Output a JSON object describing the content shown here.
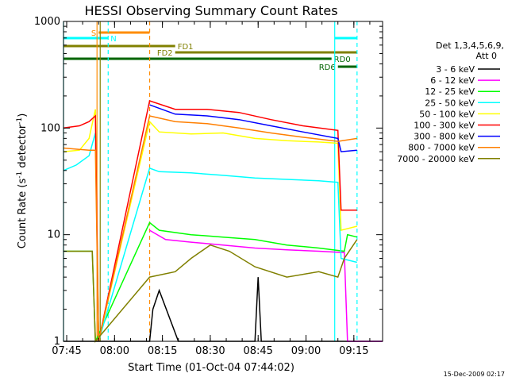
{
  "chart_data": {
    "type": "line",
    "title": "HESSI Observing Summary Count Rates",
    "xlabel": "Start Time (01-Oct-04 07:44:02)",
    "ylabel_main": "Count Rate (s",
    "ylabel_sup1": "-1",
    "ylabel_mid": " detector",
    "ylabel_sup2": "-1",
    "ylabel_end": ")",
    "x_range_min": [
      0,
      100
    ],
    "y_log_range": [
      1,
      1000
    ],
    "x_ticks": [
      {
        "label": "07:45",
        "t": 1
      },
      {
        "label": "08:00",
        "t": 16
      },
      {
        "label": "08:15",
        "t": 31
      },
      {
        "label": "08:30",
        "t": 46
      },
      {
        "label": "08:45",
        "t": 61
      },
      {
        "label": "09:00",
        "t": 76
      },
      {
        "label": "09:15",
        "t": 91
      }
    ],
    "y_ticks": [
      {
        "label": "1",
        "v": 1
      },
      {
        "label": "10",
        "v": 10
      },
      {
        "label": "100",
        "v": 100
      },
      {
        "label": "1000",
        "v": 1000
      }
    ],
    "legend_header": [
      "Det 1,3,4,5,6,9,",
      "Att 0"
    ],
    "series": [
      {
        "name": "3 - 6 keV",
        "color": "#000000",
        "points": [
          [
            0,
            1
          ],
          [
            27,
            1
          ],
          [
            28,
            2
          ],
          [
            30,
            3
          ],
          [
            36,
            1
          ],
          [
            60,
            1
          ],
          [
            61,
            4
          ],
          [
            62,
            1
          ],
          [
            100,
            1
          ]
        ]
      },
      {
        "name": "6 - 12 keV",
        "color": "#ff00ff",
        "points": [
          [
            27,
            11
          ],
          [
            32,
            9
          ],
          [
            40,
            8.5
          ],
          [
            50,
            8
          ],
          [
            60,
            7.5
          ],
          [
            70,
            7.2
          ],
          [
            80,
            7
          ],
          [
            88,
            6.8
          ],
          [
            89,
            1
          ],
          [
            100,
            1
          ]
        ]
      },
      {
        "name": "12 - 25 keV",
        "color": "#00ff00",
        "points": [
          [
            0,
            7
          ],
          [
            8,
            7
          ],
          [
            9,
            7
          ],
          [
            10,
            1
          ],
          [
            27,
            13
          ],
          [
            30,
            11
          ],
          [
            40,
            10
          ],
          [
            50,
            9.5
          ],
          [
            60,
            9
          ],
          [
            70,
            8
          ],
          [
            80,
            7.5
          ],
          [
            88,
            7
          ],
          [
            89,
            10
          ],
          [
            92,
            9.5
          ]
        ]
      },
      {
        "name": "25 - 50 keV",
        "color": "#00ffff",
        "points": [
          [
            0,
            40
          ],
          [
            4,
            45
          ],
          [
            8,
            55
          ],
          [
            10,
            90
          ],
          [
            11,
            1
          ],
          [
            27,
            42
          ],
          [
            30,
            39
          ],
          [
            40,
            38
          ],
          [
            50,
            36
          ],
          [
            60,
            34
          ],
          [
            70,
            33
          ],
          [
            80,
            32
          ],
          [
            86,
            31
          ],
          [
            87,
            6
          ],
          [
            92,
            5.5
          ]
        ]
      },
      {
        "name": "50 - 100 keV",
        "color": "#ffff00",
        "points": [
          [
            0,
            60
          ],
          [
            5,
            62
          ],
          [
            8,
            80
          ],
          [
            10,
            150
          ],
          [
            11,
            1
          ],
          [
            27,
            115
          ],
          [
            30,
            92
          ],
          [
            40,
            88
          ],
          [
            50,
            90
          ],
          [
            60,
            80
          ],
          [
            70,
            76
          ],
          [
            80,
            74
          ],
          [
            86,
            72
          ],
          [
            87,
            11
          ],
          [
            92,
            12
          ]
        ]
      },
      {
        "name": "100 - 300 keV",
        "color": "#ff0000",
        "points": [
          [
            0,
            100
          ],
          [
            5,
            105
          ],
          [
            8,
            115
          ],
          [
            10,
            130
          ],
          [
            11,
            1
          ],
          [
            27,
            180
          ],
          [
            35,
            150
          ],
          [
            45,
            150
          ],
          [
            55,
            140
          ],
          [
            65,
            120
          ],
          [
            75,
            105
          ],
          [
            86,
            95
          ],
          [
            87,
            17
          ],
          [
            92,
            17
          ]
        ]
      },
      {
        "name": "300 - 800 keV",
        "color": "#0000ff",
        "points": [
          [
            27,
            165
          ],
          [
            35,
            135
          ],
          [
            45,
            130
          ],
          [
            55,
            120
          ],
          [
            65,
            105
          ],
          [
            75,
            92
          ],
          [
            86,
            80
          ],
          [
            87,
            60
          ],
          [
            92,
            62
          ]
        ]
      },
      {
        "name": "800 - 7000 keV",
        "color": "#ff7f00",
        "points": [
          [
            0,
            65
          ],
          [
            5,
            63
          ],
          [
            8,
            62
          ],
          [
            10,
            62
          ],
          [
            11,
            1
          ],
          [
            27,
            130
          ],
          [
            35,
            115
          ],
          [
            45,
            110
          ],
          [
            55,
            100
          ],
          [
            65,
            90
          ],
          [
            75,
            82
          ],
          [
            86,
            75
          ],
          [
            92,
            80
          ]
        ]
      },
      {
        "name": "7000 - 20000 keV",
        "color": "#808000",
        "points": [
          [
            0,
            7
          ],
          [
            8,
            7
          ],
          [
            9,
            7
          ],
          [
            10,
            1
          ],
          [
            27,
            4
          ],
          [
            35,
            4.5
          ],
          [
            40,
            6
          ],
          [
            46,
            8
          ],
          [
            52,
            7
          ],
          [
            60,
            5
          ],
          [
            70,
            4
          ],
          [
            80,
            4.5
          ],
          [
            86,
            4
          ],
          [
            88,
            6
          ],
          [
            92,
            9
          ]
        ]
      }
    ],
    "annotations": {
      "S": {
        "label": "S",
        "color": "#ff8c00",
        "t_start": 11,
        "t_end": 27
      },
      "N": {
        "label": "N",
        "color": "#00ffff",
        "t_start": 0,
        "t_end": 14,
        "t_start2": 85,
        "t_end2": 92
      },
      "FD1": {
        "label": "FD1",
        "color": "#808000",
        "t_start": 0,
        "t_end": 35
      },
      "FD2": {
        "label": "FD2",
        "color": "#808000",
        "t_start": 35,
        "t_end": 92
      },
      "RD0": {
        "label": "RD0",
        "color": "#006400",
        "t_start": 0,
        "t_end": 84
      },
      "RD6": {
        "label": "RD6",
        "color": "#006400",
        "t_start": 86,
        "t_end": 92
      }
    },
    "vlines": [
      {
        "t": 0,
        "color": "#00ffff",
        "dash": false
      },
      {
        "t": 10.5,
        "color": "#ff8c00",
        "dash": false
      },
      {
        "t": 11.5,
        "color": "#808000",
        "dash": false
      },
      {
        "t": 14,
        "color": "#00ffff",
        "dash": true
      },
      {
        "t": 27,
        "color": "#ff8c00",
        "dash": true
      },
      {
        "t": 85,
        "color": "#00ffff",
        "dash": false
      },
      {
        "t": 92,
        "color": "#00ffff",
        "dash": true
      }
    ]
  },
  "timestamp": "15-Dec-2009 02:17"
}
